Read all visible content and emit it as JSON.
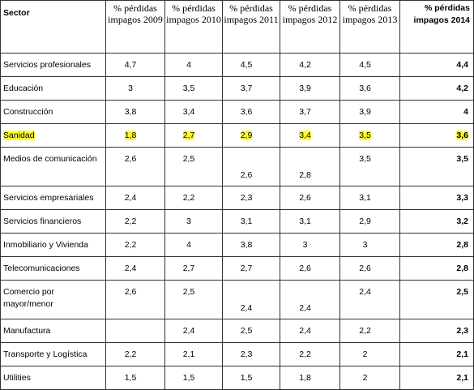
{
  "table": {
    "header": [
      "Sector",
      "% pérdidas impagos 2009",
      "% pérdidas impagos 2010",
      "% pérdidas impagos 2011",
      "% pérdidas impagos 2012",
      "% pérdidas impagos 2013",
      "% pérdidas impagos 2014"
    ],
    "rows": [
      [
        "Servicios profesionales",
        "4,7",
        "4",
        "4,5",
        "4,2",
        "4,5",
        "4,4"
      ],
      [
        "Educación",
        "3",
        "3,5",
        "3,7",
        "3,9",
        "3,6",
        "4,2"
      ],
      [
        "Construcción",
        "3,8",
        "3,4",
        "3,6",
        "3,7",
        "3,9",
        "4"
      ],
      [
        "Sanidad",
        "1,8",
        "2,7",
        "2,9",
        "3,4",
        "3,5",
        "3,6"
      ],
      [
        "Medios de comunicación",
        "2,6",
        "2,5",
        "2,6",
        "2,8",
        "3,5",
        "3,5"
      ],
      [
        "Servicios empresariales",
        "2,4",
        "2,2",
        "2,3",
        "2,6",
        "3,1",
        "3,3"
      ],
      [
        "Servicios financieros",
        "2,2",
        "3",
        "3,1",
        "3,1",
        "2,9",
        "3,2"
      ],
      [
        "Inmobiliario y Vivienda",
        "2,2",
        "4",
        "3,8",
        "3",
        "3",
        "2,8"
      ],
      [
        "Telecomunicaciones",
        "2,4",
        "2,7",
        "2,7",
        "2,6",
        "2,6",
        "2,8"
      ],
      [
        "Comercio por mayor/menor",
        "2,6",
        "2,5",
        "2,4",
        "2,4",
        "2,4",
        "2,5"
      ],
      [
        "Manufactura",
        null,
        "2,4",
        "2,5",
        "2,4",
        "2,2",
        "2,3"
      ],
      [
        "Transporte y Logística",
        "2,2",
        "2,1",
        "2,3",
        "2,2",
        "2",
        "2,1"
      ],
      [
        "Utilities",
        "1,5",
        "1,5",
        "1,5",
        "1,8",
        "2",
        "2,1"
      ]
    ]
  }
}
